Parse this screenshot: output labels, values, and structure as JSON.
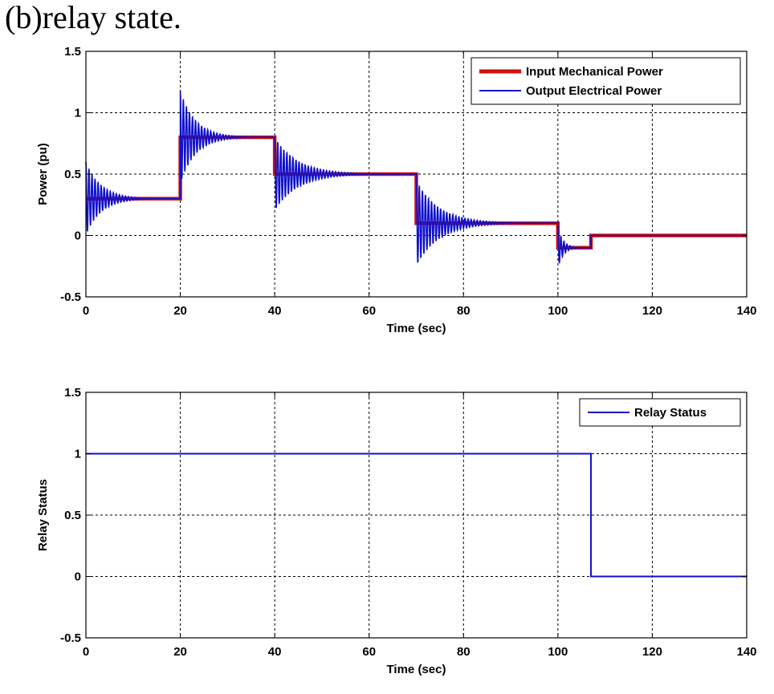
{
  "caption": "(b)relay state.",
  "chart_data": [
    {
      "type": "line",
      "xlabel": "Time (sec)",
      "ylabel": "Power (pu)",
      "xlim": [
        0,
        140
      ],
      "ylim": [
        -0.5,
        1.5
      ],
      "xticks": [
        0,
        20,
        40,
        60,
        80,
        100,
        120,
        140
      ],
      "yticks": [
        -0.5,
        0,
        0.5,
        1,
        1.5
      ],
      "xtick_labels": [
        "0",
        "20",
        "40",
        "60",
        "80",
        "100",
        "120",
        "140"
      ],
      "ytick_labels": [
        "-0.5",
        "0",
        "0.5",
        "1",
        "1.5"
      ],
      "grid": true,
      "legend_position": "top-right",
      "series": [
        {
          "name": "Input Mechanical Power",
          "color": "#cc1111",
          "style": "step",
          "x": [
            0,
            20,
            20,
            40,
            40,
            70,
            70,
            100,
            100,
            107,
            107,
            140
          ],
          "y": [
            0.3,
            0.3,
            0.8,
            0.8,
            0.5,
            0.5,
            0.1,
            0.1,
            -0.1,
            -0.1,
            0,
            0
          ]
        },
        {
          "name": "Output Electrical Power",
          "color": "#1010cc",
          "style": "damped-oscillation",
          "segments": [
            {
              "t0": 0,
              "t1": 20,
              "level": 0.3,
              "amplitude": 0.3,
              "start_peak": 0.52
            },
            {
              "t0": 20,
              "t1": 40,
              "level": 0.8,
              "amplitude": 0.38,
              "start_peak": 1.18
            },
            {
              "t0": 40,
              "t1": 70,
              "level": 0.5,
              "amplitude": 0.3,
              "start_peak": 0.45
            },
            {
              "t0": 70,
              "t1": 100,
              "level": 0.1,
              "amplitude": 0.35,
              "start_peak": -0.23
            },
            {
              "t0": 100,
              "t1": 107,
              "level": -0.1,
              "amplitude": 0.17,
              "start_peak": -0.27
            }
          ],
          "x": [
            107,
            107,
            140
          ],
          "y": [
            -0.08,
            0,
            0
          ]
        }
      ]
    },
    {
      "type": "line",
      "xlabel": "Time (sec)",
      "ylabel": "Relay Status",
      "xlim": [
        0,
        140
      ],
      "ylim": [
        -0.5,
        1.5
      ],
      "xticks": [
        0,
        20,
        40,
        60,
        80,
        100,
        120,
        140
      ],
      "yticks": [
        -0.5,
        0,
        0.5,
        1,
        1.5
      ],
      "xtick_labels": [
        "0",
        "20",
        "40",
        "60",
        "80",
        "100",
        "120",
        "140"
      ],
      "ytick_labels": [
        "-0.5",
        "0",
        "0.5",
        "1",
        "1.5"
      ],
      "grid": true,
      "legend_position": "top-right",
      "series": [
        {
          "name": "Relay Status",
          "color": "#1010cc",
          "style": "step",
          "x": [
            0,
            107,
            107,
            140
          ],
          "y": [
            1,
            1,
            0,
            0
          ]
        }
      ]
    }
  ]
}
